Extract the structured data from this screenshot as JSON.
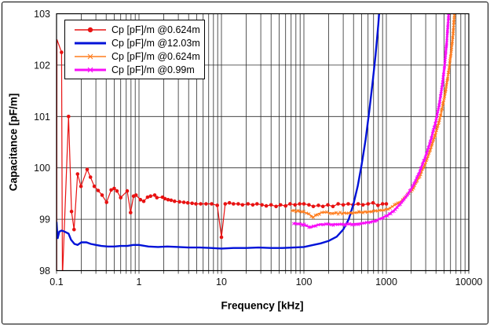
{
  "window": {
    "background": "#ffffff",
    "border_color": "#000000"
  },
  "chart_data": {
    "type": "line",
    "title": "",
    "xlabel": "Frequency [kHz]",
    "ylabel": "Capacitance [pF/m]",
    "x_scale": "log",
    "xlim": [
      0.1,
      10000
    ],
    "ylim": [
      98,
      103
    ],
    "x_ticks": [
      "0.1",
      "1",
      "10",
      "100",
      "1000",
      "10000"
    ],
    "x_tick_values": [
      0.1,
      1,
      10,
      100,
      1000,
      10000
    ],
    "y_ticks": [
      "98",
      "99",
      "100",
      "101",
      "102",
      "103"
    ],
    "y_tick_values": [
      98,
      99,
      100,
      101,
      102,
      103
    ],
    "grid": "full log grid, thin black lines, minor decade divisions",
    "legend": {
      "position": "top-left",
      "background": "#ffffff",
      "border": "#000000"
    },
    "grid_color": "#2b2b2b",
    "axis_text_color": "#111111",
    "series": [
      {
        "name": "Cp [pF]/m @0.624m",
        "color": "#e81212",
        "marker": "circle",
        "line_width": 1.2,
        "points": [
          [
            0.1005,
            97.85
          ],
          [
            0.101,
            102.5
          ],
          [
            0.115,
            102.25
          ],
          [
            0.118,
            97.85
          ],
          [
            0.14,
            101.0
          ],
          [
            0.152,
            99.15
          ],
          [
            0.163,
            98.8
          ],
          [
            0.18,
            99.88
          ],
          [
            0.198,
            99.64
          ],
          [
            0.235,
            99.97
          ],
          [
            0.258,
            99.82
          ],
          [
            0.287,
            99.64
          ],
          [
            0.32,
            99.56
          ],
          [
            0.357,
            99.47
          ],
          [
            0.404,
            99.33
          ],
          [
            0.46,
            99.57
          ],
          [
            0.5,
            99.6
          ],
          [
            0.54,
            99.55
          ],
          [
            0.6,
            99.42
          ],
          [
            0.72,
            99.55
          ],
          [
            0.79,
            99.13
          ],
          [
            0.86,
            99.45
          ],
          [
            0.92,
            99.47
          ],
          [
            1.04,
            99.38
          ],
          [
            1.14,
            99.35
          ],
          [
            1.27,
            99.43
          ],
          [
            1.38,
            99.45
          ],
          [
            1.55,
            99.47
          ],
          [
            1.65,
            99.42
          ],
          [
            1.93,
            99.43
          ],
          [
            2.06,
            99.4
          ],
          [
            2.25,
            99.38
          ],
          [
            2.45,
            99.37
          ],
          [
            2.7,
            99.35
          ],
          [
            3.1,
            99.34
          ],
          [
            3.5,
            99.33
          ],
          [
            3.9,
            99.32
          ],
          [
            4.4,
            99.31
          ],
          [
            4.9,
            99.3
          ],
          [
            5.6,
            99.3
          ],
          [
            6.5,
            99.3
          ],
          [
            7.6,
            99.3
          ],
          [
            8.9,
            99.27
          ],
          [
            10,
            98.65
          ],
          [
            11.1,
            99.3
          ],
          [
            12.5,
            99.32
          ],
          [
            14,
            99.3
          ],
          [
            16,
            99.3
          ],
          [
            18,
            99.28
          ],
          [
            21,
            99.3
          ],
          [
            24,
            99.28
          ],
          [
            27,
            99.3
          ],
          [
            31,
            99.28
          ],
          [
            35,
            99.26
          ],
          [
            40,
            99.28
          ],
          [
            46,
            99.25
          ],
          [
            52,
            99.28
          ],
          [
            60,
            99.26
          ],
          [
            68,
            99.3
          ],
          [
            78,
            99.28
          ],
          [
            89,
            99.3
          ],
          [
            100,
            99.3
          ],
          [
            115,
            99.28
          ],
          [
            130,
            99.25
          ],
          [
            150,
            99.27
          ],
          [
            170,
            99.25
          ],
          [
            195,
            99.28
          ],
          [
            225,
            99.25
          ],
          [
            260,
            99.3
          ],
          [
            300,
            99.28
          ],
          [
            345,
            99.3
          ],
          [
            395,
            99.28
          ],
          [
            455,
            99.3
          ],
          [
            520,
            99.28
          ],
          [
            600,
            99.3
          ],
          [
            690,
            99.32
          ],
          [
            790,
            99.27
          ],
          [
            900,
            99.3
          ],
          [
            1000,
            99.3
          ]
        ]
      },
      {
        "name": "Cp [pF]/m @12.03m",
        "color": "#0012d8",
        "marker": "none",
        "line_width": 2.4,
        "points": [
          [
            0.1,
            98.95
          ],
          [
            0.103,
            98.62
          ],
          [
            0.108,
            98.76
          ],
          [
            0.115,
            98.78
          ],
          [
            0.125,
            98.76
          ],
          [
            0.14,
            98.72
          ],
          [
            0.15,
            98.6
          ],
          [
            0.165,
            98.52
          ],
          [
            0.18,
            98.5
          ],
          [
            0.2,
            98.55
          ],
          [
            0.23,
            98.55
          ],
          [
            0.26,
            98.52
          ],
          [
            0.3,
            98.5
          ],
          [
            0.35,
            98.48
          ],
          [
            0.42,
            98.47
          ],
          [
            0.5,
            98.47
          ],
          [
            0.6,
            98.48
          ],
          [
            0.72,
            98.48
          ],
          [
            0.85,
            98.5
          ],
          [
            1.0,
            98.5
          ],
          [
            1.3,
            98.47
          ],
          [
            1.7,
            98.46
          ],
          [
            2.2,
            98.47
          ],
          [
            3,
            98.46
          ],
          [
            4,
            98.45
          ],
          [
            5.5,
            98.45
          ],
          [
            7.5,
            98.44
          ],
          [
            10,
            98.43
          ],
          [
            14,
            98.44
          ],
          [
            20,
            98.44
          ],
          [
            28,
            98.45
          ],
          [
            40,
            98.44
          ],
          [
            55,
            98.44
          ],
          [
            75,
            98.45
          ],
          [
            100,
            98.46
          ],
          [
            130,
            98.5
          ],
          [
            160,
            98.53
          ],
          [
            200,
            98.58
          ],
          [
            250,
            98.66
          ],
          [
            300,
            98.8
          ],
          [
            350,
            99.0
          ],
          [
            400,
            99.3
          ],
          [
            450,
            99.65
          ],
          [
            500,
            100.05
          ],
          [
            560,
            100.55
          ],
          [
            620,
            101.1
          ],
          [
            680,
            101.65
          ],
          [
            740,
            102.2
          ],
          [
            800,
            102.8
          ],
          [
            830,
            103.15
          ]
        ]
      },
      {
        "name": "Cp [pF]/m @0.624m",
        "color": "#ff7d1e",
        "marker": "x",
        "line_width": 1.6,
        "points": [
          [
            72,
            99.17
          ],
          [
            80,
            99.16
          ],
          [
            90,
            99.15
          ],
          [
            100,
            99.14
          ],
          [
            115,
            99.1
          ],
          [
            130,
            99.04
          ],
          [
            145,
            99.1
          ],
          [
            165,
            99.13
          ],
          [
            190,
            99.13
          ],
          [
            220,
            99.12
          ],
          [
            260,
            99.12
          ],
          [
            310,
            99.12
          ],
          [
            370,
            99.12
          ],
          [
            440,
            99.13
          ],
          [
            520,
            99.14
          ],
          [
            620,
            99.15
          ],
          [
            740,
            99.16
          ],
          [
            880,
            99.17
          ],
          [
            1050,
            99.2
          ],
          [
            1250,
            99.27
          ],
          [
            1500,
            99.35
          ],
          [
            1800,
            99.48
          ],
          [
            2150,
            99.62
          ],
          [
            2550,
            99.85
          ],
          [
            3000,
            100.1
          ],
          [
            3500,
            100.4
          ],
          [
            4050,
            100.72
          ],
          [
            4600,
            101.05
          ],
          [
            5100,
            101.4
          ],
          [
            5600,
            101.8
          ],
          [
            6050,
            102.2
          ],
          [
            6450,
            102.6
          ],
          [
            6800,
            103.15
          ]
        ]
      },
      {
        "name": "Cp [pF]/m @0.99m",
        "color": "#f80ef8",
        "marker": "x",
        "line_width": 2.4,
        "points": [
          [
            75,
            98.93
          ],
          [
            85,
            98.91
          ],
          [
            95,
            98.9
          ],
          [
            108,
            98.87
          ],
          [
            122,
            98.84
          ],
          [
            140,
            98.88
          ],
          [
            160,
            98.9
          ],
          [
            185,
            98.9
          ],
          [
            215,
            98.9
          ],
          [
            255,
            98.9
          ],
          [
            300,
            98.9
          ],
          [
            360,
            98.9
          ],
          [
            430,
            98.91
          ],
          [
            510,
            98.92
          ],
          [
            610,
            98.94
          ],
          [
            730,
            98.97
          ],
          [
            870,
            99.02
          ],
          [
            1040,
            99.08
          ],
          [
            1240,
            99.17
          ],
          [
            1480,
            99.3
          ],
          [
            1760,
            99.45
          ],
          [
            2100,
            99.65
          ],
          [
            2500,
            99.9
          ],
          [
            2950,
            100.2
          ],
          [
            3400,
            100.5
          ],
          [
            3900,
            100.85
          ],
          [
            4350,
            101.2
          ],
          [
            4750,
            101.6
          ],
          [
            5100,
            102.0
          ],
          [
            5400,
            102.45
          ],
          [
            5650,
            102.9
          ],
          [
            5750,
            103.15
          ]
        ]
      }
    ]
  }
}
